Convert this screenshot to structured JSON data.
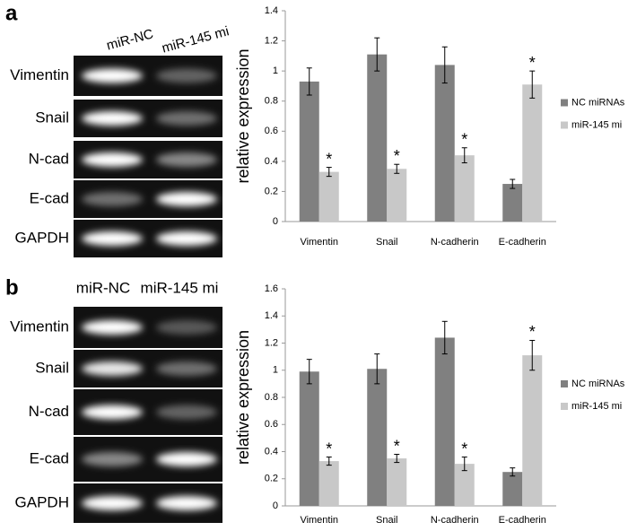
{
  "panels": [
    {
      "letter": "a",
      "lanes": [
        "miR-NC",
        "miR-145 mi"
      ],
      "rows": [
        "Vimentin",
        "Snail",
        "N-cad",
        "E-cad",
        "GAPDH"
      ]
    },
    {
      "letter": "b",
      "lanes": [
        "miR-NC",
        "miR-145 mi"
      ],
      "rows": [
        "Vimentin",
        "Snail",
        "N-cad",
        "E-cad",
        "GAPDH"
      ]
    }
  ],
  "chart_data": [
    {
      "type": "bar",
      "y_label": "relative expression",
      "categories": [
        "Vimentin",
        "Snail",
        "N-cadherin",
        "E-cadherin"
      ],
      "series": [
        {
          "name": "NC miRNAs",
          "color": "#808080",
          "values": [
            0.93,
            1.11,
            1.04,
            0.25
          ],
          "errors": [
            0.09,
            0.11,
            0.12,
            0.03
          ]
        },
        {
          "name": "miR-145 mi",
          "color": "#c8c8c8",
          "values": [
            0.33,
            0.35,
            0.44,
            0.91
          ],
          "errors": [
            0.03,
            0.03,
            0.05,
            0.09
          ],
          "significance": [
            "*",
            "*",
            "*",
            "*"
          ]
        }
      ],
      "ylim": [
        0,
        1.4
      ],
      "yticks": [
        0,
        0.2,
        0.4,
        0.6,
        0.8,
        1,
        1.2,
        1.4
      ],
      "legend": "right"
    },
    {
      "type": "bar",
      "y_label": "relative expression",
      "categories": [
        "Vimentin",
        "Snail",
        "N-cadherin",
        "E-cadherin"
      ],
      "series": [
        {
          "name": "NC miRNAs",
          "color": "#808080",
          "values": [
            0.99,
            1.01,
            1.24,
            0.25
          ],
          "errors": [
            0.09,
            0.11,
            0.12,
            0.03
          ]
        },
        {
          "name": "miR-145 mi",
          "color": "#c8c8c8",
          "values": [
            0.33,
            0.35,
            0.31,
            1.11
          ],
          "errors": [
            0.03,
            0.03,
            0.05,
            0.11
          ],
          "significance": [
            "*",
            "*",
            "*",
            "*"
          ]
        }
      ],
      "ylim": [
        0,
        1.6
      ],
      "yticks": [
        0,
        0.2,
        0.4,
        0.6,
        0.8,
        1,
        1.2,
        1.4,
        1.6
      ],
      "legend": "right"
    }
  ]
}
